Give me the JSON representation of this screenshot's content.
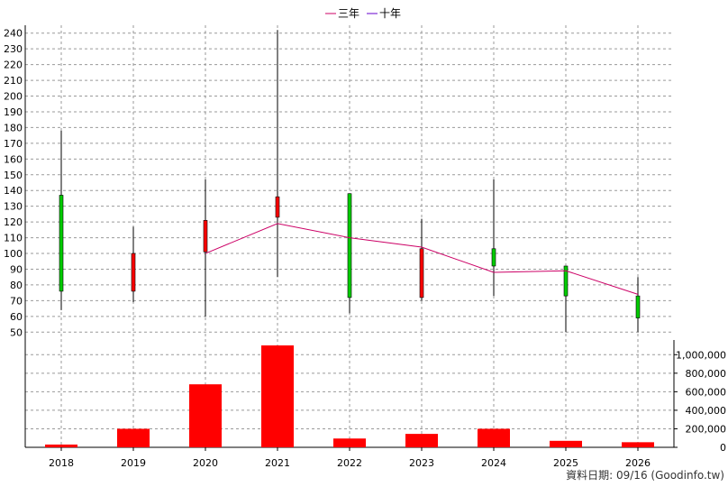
{
  "legend": [
    {
      "label": "三年",
      "color": "#cc0066"
    },
    {
      "label": "十年",
      "color": "#6600cc"
    }
  ],
  "source_text": "資料日期: 09/16  (Goodinfo.tw)",
  "colors": {
    "up": "#ff0000",
    "down": "#00cc00",
    "volume": "#ff0000",
    "grid": "#9a9a9a"
  },
  "chart_data": [
    {
      "type": "candlestick",
      "categories": [
        "2018",
        "2019",
        "2020",
        "2021",
        "2022",
        "2023",
        "2024",
        "2025",
        "2026"
      ],
      "ohlc": [
        {
          "open": 137,
          "high": 178,
          "low": 64,
          "close": 76
        },
        {
          "open": 76,
          "high": 117,
          "low": 69,
          "close": 100
        },
        {
          "open": 101,
          "high": 147,
          "low": 60,
          "close": 121
        },
        {
          "open": 123,
          "high": 242,
          "low": 85,
          "close": 136
        },
        {
          "open": 138,
          "high": 138,
          "low": 62,
          "close": 72
        },
        {
          "open": 72,
          "high": 122,
          "low": 70,
          "close": 103
        },
        {
          "open": 103,
          "high": 147,
          "low": 73,
          "close": 92
        },
        {
          "open": 92,
          "high": 92,
          "low": 50,
          "close": 73
        },
        {
          "open": 73,
          "high": 85,
          "low": 50,
          "close": 59
        }
      ],
      "series": [
        {
          "name": "三年",
          "values": [
            null,
            null,
            100,
            119,
            110,
            104,
            88,
            89,
            74
          ]
        }
      ],
      "yticks": [
        50,
        60,
        70,
        80,
        90,
        100,
        110,
        120,
        130,
        140,
        150,
        160,
        170,
        180,
        190,
        200,
        210,
        220,
        230,
        240
      ],
      "ylim": [
        45,
        245
      ]
    },
    {
      "type": "bar",
      "categories": [
        "2018",
        "2019",
        "2020",
        "2021",
        "2022",
        "2023",
        "2024",
        "2025",
        "2026"
      ],
      "values": [
        30000,
        200000,
        680000,
        1100000,
        95000,
        145000,
        200000,
        70000,
        55000
      ],
      "yticks": [
        "0",
        "200,000",
        "400,000",
        "600,000",
        "800,000",
        "1,000,000"
      ],
      "ylim": [
        0,
        1100000
      ]
    }
  ]
}
